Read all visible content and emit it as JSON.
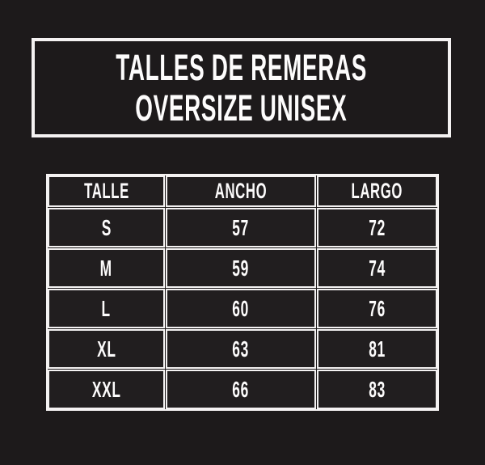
{
  "meta": {
    "background_color": "#1d1a1b",
    "line_color": "#f4f2f2",
    "text_color": "#fdfcfc"
  },
  "title": {
    "line1": "TALLES DE REMERAS",
    "line2": "OVERSIZE UNISEX"
  },
  "table": {
    "headers": [
      "TALLE",
      "ANCHO",
      "LARGO"
    ],
    "rows": [
      [
        "S",
        "57",
        "72"
      ],
      [
        "M",
        "59",
        "74"
      ],
      [
        "L",
        "60",
        "76"
      ],
      [
        "XL",
        "63",
        "81"
      ],
      [
        "XXL",
        "66",
        "83"
      ]
    ]
  },
  "chart_data": {
    "type": "table",
    "title": "TALLES DE REMERAS OVERSIZE UNISEX",
    "columns": [
      "TALLE",
      "ANCHO",
      "LARGO"
    ],
    "rows": [
      {
        "TALLE": "S",
        "ANCHO": 57,
        "LARGO": 72
      },
      {
        "TALLE": "M",
        "ANCHO": 59,
        "LARGO": 74
      },
      {
        "TALLE": "L",
        "ANCHO": 60,
        "LARGO": 76
      },
      {
        "TALLE": "XL",
        "ANCHO": 63,
        "LARGO": 81
      },
      {
        "TALLE": "XXL",
        "ANCHO": 66,
        "LARGO": 83
      }
    ]
  }
}
